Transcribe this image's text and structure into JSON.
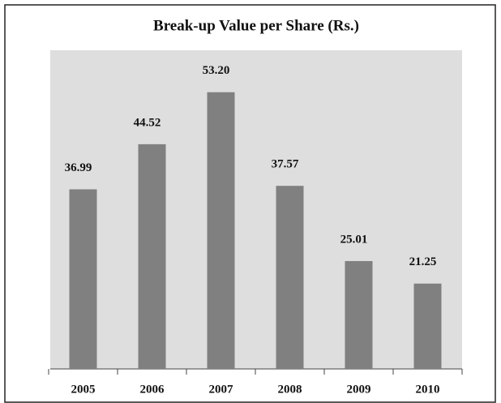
{
  "chart_data": {
    "type": "bar",
    "title": "Break-up Value per Share (Rs.)",
    "categories": [
      "2005",
      "2006",
      "2007",
      "2008",
      "2009",
      "2010"
    ],
    "values": [
      36.99,
      44.52,
      53.2,
      37.57,
      25.01,
      21.25
    ],
    "value_labels": [
      "36.99",
      "44.52",
      "53.20",
      "37.57",
      "25.01",
      "21.25"
    ],
    "color": "#808080",
    "ylim": [
      7,
      60
    ]
  }
}
